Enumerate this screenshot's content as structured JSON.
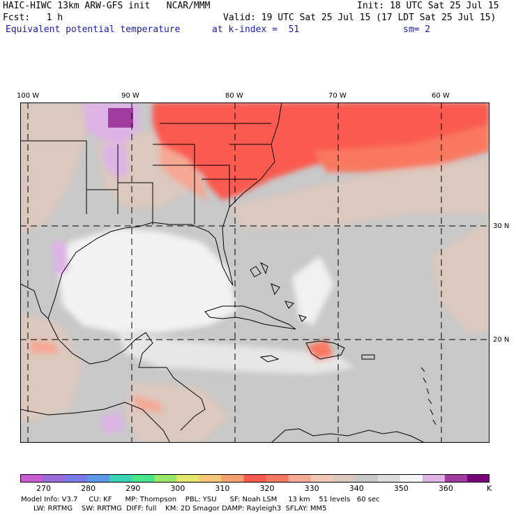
{
  "header": {
    "line1_left": "HAIC-HIWC 13km ARW-GFS init   NCAR/MMM",
    "line1_right": "Init: 18 UTC Sat 25 Jul 15",
    "line2_left": "Fcst:   1 h",
    "line2_right": "Valid: 19 UTC Sat 25 Jul 15 (17 LDT Sat 25 Jul 15)",
    "field": "Equivalent potential temperature",
    "level": "at k-index =  51",
    "smoothing": "sm= 2"
  },
  "map": {
    "lon_labels": [
      "100 W",
      "90 W",
      "80 W",
      "70 W",
      "60 W"
    ],
    "lat_labels": [
      "30 N",
      "20 N"
    ]
  },
  "colorbar": {
    "unit": "K",
    "tick_labels": [
      "270",
      "280",
      "290",
      "300",
      "310",
      "320",
      "330",
      "340",
      "350",
      "360"
    ],
    "colors": [
      "#c85ad2",
      "#9a6ad8",
      "#7a7ae8",
      "#5a9ae8",
      "#3cd2b4",
      "#4ae68c",
      "#9ae66a",
      "#e6e66a",
      "#f5c878",
      "#f5a070",
      "#fa5a50",
      "#fa7860",
      "#f5a894",
      "#f2c8b4",
      "#dcc8be",
      "#c8c8c8",
      "#dcdcdc",
      "#f5f5f5",
      "#dcb4e6",
      "#a03ca0",
      "#780078"
    ]
  },
  "footer": {
    "line1": "Model Info: V3.7     CU: KF      MP: Thompson    PBL: YSU      SF: Noah LSM     13 km    51 levels   60 sec",
    "line2": "LW: RRTMG    SW: RRTMG  DIFF: full    KM: 2D Smagor DAMP: Rayleigh3  SFLAY: MM5"
  }
}
